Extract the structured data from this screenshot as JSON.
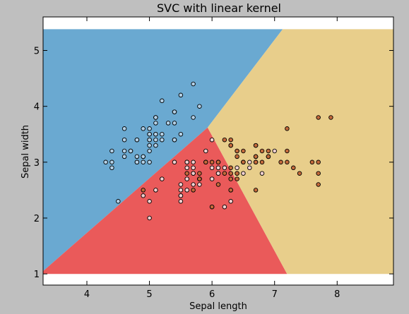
{
  "chart_data": {
    "type": "scatter",
    "title": "SVC with linear kernel",
    "xlabel": "Sepal length",
    "ylabel": "Sepal width",
    "xlim": [
      3.3,
      8.9
    ],
    "ylim": [
      0.8,
      5.6
    ],
    "xticks": [
      "4",
      "5",
      "6",
      "7",
      "8"
    ],
    "yticks": [
      "1",
      "2",
      "3",
      "4",
      "5"
    ],
    "grid": false,
    "background": "#ffffff",
    "decision_regions": [
      {
        "class": "setosa",
        "color": "#6aa9d1",
        "polygon": [
          [
            3.3,
            1.05
          ],
          [
            5.93,
            3.62
          ],
          [
            7.13,
            5.38
          ],
          [
            3.3,
            5.38
          ]
        ]
      },
      {
        "class": "versicolor",
        "color": "#ea5a5a",
        "polygon": [
          [
            3.3,
            1.05
          ],
          [
            5.93,
            3.62
          ],
          [
            7.2,
            1.0
          ],
          [
            3.3,
            1.0
          ]
        ]
      },
      {
        "class": "virginica",
        "color": "#e8ce8b",
        "polygon": [
          [
            5.93,
            3.62
          ],
          [
            7.13,
            5.38
          ],
          [
            8.9,
            5.38
          ],
          [
            8.9,
            1.0
          ],
          [
            7.2,
            1.0
          ]
        ]
      }
    ],
    "series": [
      {
        "color": "#b3d0e6",
        "points": [
          [
            5.1,
            3.5
          ],
          [
            4.9,
            3.0
          ],
          [
            4.7,
            3.2
          ],
          [
            4.6,
            3.1
          ],
          [
            5.0,
            3.6
          ],
          [
            5.4,
            3.9
          ],
          [
            4.6,
            3.4
          ],
          [
            5.0,
            3.4
          ],
          [
            4.4,
            2.9
          ],
          [
            4.9,
            3.1
          ],
          [
            5.4,
            3.7
          ],
          [
            4.8,
            3.4
          ],
          [
            4.8,
            3.0
          ],
          [
            4.3,
            3.0
          ],
          [
            5.8,
            4.0
          ],
          [
            5.7,
            4.4
          ],
          [
            5.4,
            3.9
          ],
          [
            5.1,
            3.5
          ],
          [
            5.7,
            3.8
          ],
          [
            5.1,
            3.8
          ],
          [
            5.4,
            3.4
          ],
          [
            5.1,
            3.7
          ],
          [
            4.6,
            3.6
          ],
          [
            5.1,
            3.3
          ],
          [
            4.8,
            3.4
          ],
          [
            5.0,
            3.0
          ],
          [
            5.0,
            3.4
          ],
          [
            5.2,
            3.5
          ],
          [
            5.2,
            3.4
          ],
          [
            4.7,
            3.2
          ],
          [
            4.8,
            3.1
          ],
          [
            5.4,
            3.4
          ],
          [
            5.2,
            4.1
          ],
          [
            5.5,
            4.2
          ],
          [
            4.9,
            3.1
          ],
          [
            5.0,
            3.2
          ],
          [
            5.5,
            3.5
          ],
          [
            4.9,
            3.6
          ],
          [
            4.4,
            3.0
          ],
          [
            5.1,
            3.4
          ],
          [
            5.0,
            3.5
          ],
          [
            4.5,
            2.3
          ],
          [
            4.4,
            3.2
          ],
          [
            5.0,
            3.5
          ],
          [
            5.1,
            3.8
          ],
          [
            4.8,
            3.0
          ],
          [
            5.1,
            3.8
          ],
          [
            4.6,
            3.2
          ],
          [
            5.3,
            3.7
          ],
          [
            5.0,
            3.3
          ]
        ]
      },
      {
        "color": "#f0cfcf",
        "points": [
          [
            7.0,
            3.2
          ],
          [
            6.4,
            3.2
          ],
          [
            6.9,
            3.1
          ],
          [
            5.5,
            2.3
          ],
          [
            6.5,
            2.8
          ],
          [
            5.7,
            2.8
          ],
          [
            6.3,
            3.3
          ],
          [
            4.9,
            2.4
          ],
          [
            6.6,
            2.9
          ],
          [
            5.2,
            2.7
          ],
          [
            5.0,
            2.0
          ],
          [
            5.9,
            3.0
          ],
          [
            6.0,
            2.2
          ],
          [
            6.1,
            2.9
          ],
          [
            5.6,
            2.9
          ],
          [
            6.7,
            3.1
          ],
          [
            5.6,
            3.0
          ],
          [
            5.8,
            2.7
          ],
          [
            6.2,
            2.2
          ],
          [
            5.6,
            2.5
          ],
          [
            5.9,
            3.2
          ],
          [
            6.1,
            2.8
          ],
          [
            6.3,
            2.5
          ],
          [
            6.1,
            2.8
          ],
          [
            6.4,
            2.9
          ],
          [
            6.6,
            3.0
          ],
          [
            6.8,
            2.8
          ],
          [
            6.7,
            3.0
          ],
          [
            6.0,
            2.9
          ],
          [
            5.7,
            2.6
          ],
          [
            5.5,
            2.4
          ],
          [
            5.5,
            2.4
          ],
          [
            5.8,
            2.7
          ],
          [
            6.0,
            2.7
          ],
          [
            5.4,
            3.0
          ],
          [
            6.0,
            3.4
          ],
          [
            6.7,
            3.1
          ],
          [
            6.3,
            2.3
          ],
          [
            5.6,
            3.0
          ],
          [
            5.5,
            2.5
          ],
          [
            5.5,
            2.6
          ],
          [
            6.1,
            3.0
          ],
          [
            5.8,
            2.6
          ],
          [
            5.0,
            2.3
          ],
          [
            5.6,
            2.7
          ],
          [
            5.7,
            3.0
          ],
          [
            5.7,
            2.9
          ],
          [
            6.2,
            2.9
          ],
          [
            5.1,
            2.5
          ],
          [
            5.7,
            2.8
          ]
        ]
      },
      {
        "color": "#c46a3b",
        "points": [
          [
            6.3,
            3.3
          ],
          [
            5.8,
            2.7
          ],
          [
            7.1,
            3.0
          ],
          [
            6.3,
            2.9
          ],
          [
            6.5,
            3.0
          ],
          [
            7.6,
            3.0
          ],
          [
            4.9,
            2.5
          ],
          [
            7.3,
            2.9
          ],
          [
            6.7,
            2.5
          ],
          [
            7.2,
            3.6
          ],
          [
            6.5,
            3.2
          ],
          [
            6.4,
            2.7
          ],
          [
            6.8,
            3.0
          ],
          [
            5.7,
            2.5
          ],
          [
            5.8,
            2.8
          ],
          [
            6.4,
            3.2
          ],
          [
            6.5,
            3.0
          ],
          [
            7.7,
            3.8
          ],
          [
            7.7,
            2.6
          ],
          [
            6.0,
            2.2
          ],
          [
            6.9,
            3.2
          ],
          [
            5.6,
            2.8
          ],
          [
            7.7,
            2.8
          ],
          [
            6.3,
            2.7
          ],
          [
            6.7,
            3.3
          ],
          [
            7.2,
            3.2
          ],
          [
            6.2,
            2.8
          ],
          [
            6.1,
            3.0
          ],
          [
            6.4,
            2.8
          ],
          [
            7.2,
            3.0
          ],
          [
            7.4,
            2.8
          ],
          [
            7.9,
            3.8
          ],
          [
            6.4,
            2.8
          ],
          [
            6.3,
            2.8
          ],
          [
            6.1,
            2.6
          ],
          [
            7.7,
            3.0
          ],
          [
            6.3,
            3.4
          ],
          [
            6.4,
            3.1
          ],
          [
            6.0,
            3.0
          ],
          [
            6.9,
            3.1
          ],
          [
            6.7,
            3.1
          ],
          [
            6.9,
            3.1
          ],
          [
            5.8,
            2.7
          ],
          [
            6.8,
            3.2
          ],
          [
            6.7,
            3.3
          ],
          [
            6.7,
            3.0
          ],
          [
            6.3,
            2.5
          ],
          [
            6.5,
            3.0
          ],
          [
            6.2,
            3.4
          ],
          [
            5.9,
            3.0
          ]
        ]
      }
    ]
  }
}
